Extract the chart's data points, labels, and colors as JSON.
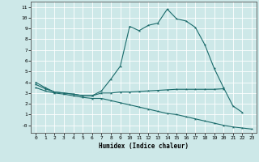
{
  "xlabel": "Humidex (Indice chaleur)",
  "bg_color": "#cde8e8",
  "grid_color": "#ffffff",
  "line_color": "#1a6b6b",
  "xlim": [
    -0.5,
    23.5
  ],
  "ylim": [
    -0.7,
    11.5
  ],
  "xticks": [
    0,
    1,
    2,
    3,
    4,
    5,
    6,
    7,
    8,
    9,
    10,
    11,
    12,
    13,
    14,
    15,
    16,
    17,
    18,
    19,
    20,
    21,
    22,
    23
  ],
  "yticks": [
    0,
    1,
    2,
    3,
    4,
    5,
    6,
    7,
    8,
    9,
    10,
    11
  ],
  "ytick_labels": [
    "-0",
    "1",
    "2",
    "3",
    "4",
    "5",
    "6",
    "7",
    "8",
    "9",
    "10",
    "11"
  ],
  "line1_x": [
    0,
    1,
    2,
    3,
    4,
    5,
    6,
    7,
    8,
    9,
    10,
    11,
    12,
    13,
    14,
    15,
    16,
    17,
    18,
    19,
    20,
    21,
    22
  ],
  "line1_y": [
    4.0,
    3.5,
    3.1,
    3.0,
    2.9,
    2.75,
    2.75,
    3.2,
    4.3,
    5.5,
    9.2,
    8.8,
    9.3,
    9.5,
    10.8,
    9.9,
    9.7,
    9.1,
    7.5,
    5.3,
    3.5,
    1.8,
    1.2
  ],
  "line2_x": [
    0,
    1,
    2,
    3,
    4,
    5,
    6,
    7,
    8,
    9,
    10,
    11,
    12,
    13,
    14,
    15,
    16,
    17,
    18,
    19,
    20
  ],
  "line2_y": [
    3.8,
    3.4,
    3.1,
    3.0,
    2.9,
    2.75,
    2.75,
    3.0,
    3.0,
    3.1,
    3.1,
    3.15,
    3.2,
    3.25,
    3.3,
    3.35,
    3.35,
    3.35,
    3.35,
    3.35,
    3.4
  ],
  "line3_x": [
    0,
    1,
    2,
    3,
    4,
    5,
    6,
    7,
    8,
    9,
    10,
    11,
    12,
    13,
    14,
    15,
    16,
    17,
    18,
    19,
    20,
    21,
    22,
    23
  ],
  "line3_y": [
    3.5,
    3.2,
    3.0,
    2.9,
    2.75,
    2.6,
    2.5,
    2.5,
    2.3,
    2.1,
    1.9,
    1.7,
    1.5,
    1.3,
    1.1,
    1.0,
    0.8,
    0.6,
    0.4,
    0.2,
    0.0,
    -0.15,
    -0.25,
    -0.35
  ]
}
